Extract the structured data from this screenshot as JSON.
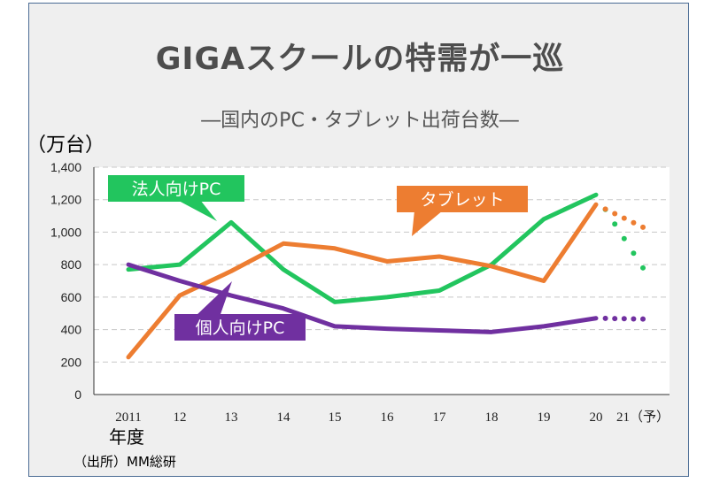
{
  "title": "GIGAスクールの特需が一巡",
  "subtitle": "―国内のPC・タブレット出荷台数―",
  "source": "（出所）MM総研",
  "chart_data": {
    "type": "line",
    "ylabel": "（万台）",
    "xlabel": "年度",
    "categories": [
      "2011",
      "12",
      "13",
      "14",
      "15",
      "16",
      "17",
      "18",
      "19",
      "20",
      "21（予）"
    ],
    "ylim": [
      0,
      1400
    ],
    "yticks": [
      0,
      200,
      400,
      600,
      800,
      1000,
      1200,
      1400
    ],
    "ytick_labels": [
      "0",
      "200",
      "400",
      "600",
      "800",
      "1,000",
      "1,200",
      "1,400"
    ],
    "grid": "horizontal dashed",
    "projection_from_index": 9,
    "series": [
      {
        "name": "法人向けPC",
        "color": "#22c55e",
        "values": [
          770,
          800,
          1060,
          770,
          570,
          600,
          640,
          800,
          1080,
          1230,
          780
        ]
      },
      {
        "name": "タブレット",
        "color": "#ed7d31",
        "values": [
          230,
          610,
          760,
          930,
          900,
          820,
          850,
          790,
          700,
          1170,
          1030
        ]
      },
      {
        "name": "個人向けPC",
        "color": "#7030a0",
        "values": [
          800,
          700,
          610,
          530,
          420,
          405,
          395,
          385,
          420,
          470,
          465
        ]
      }
    ]
  }
}
